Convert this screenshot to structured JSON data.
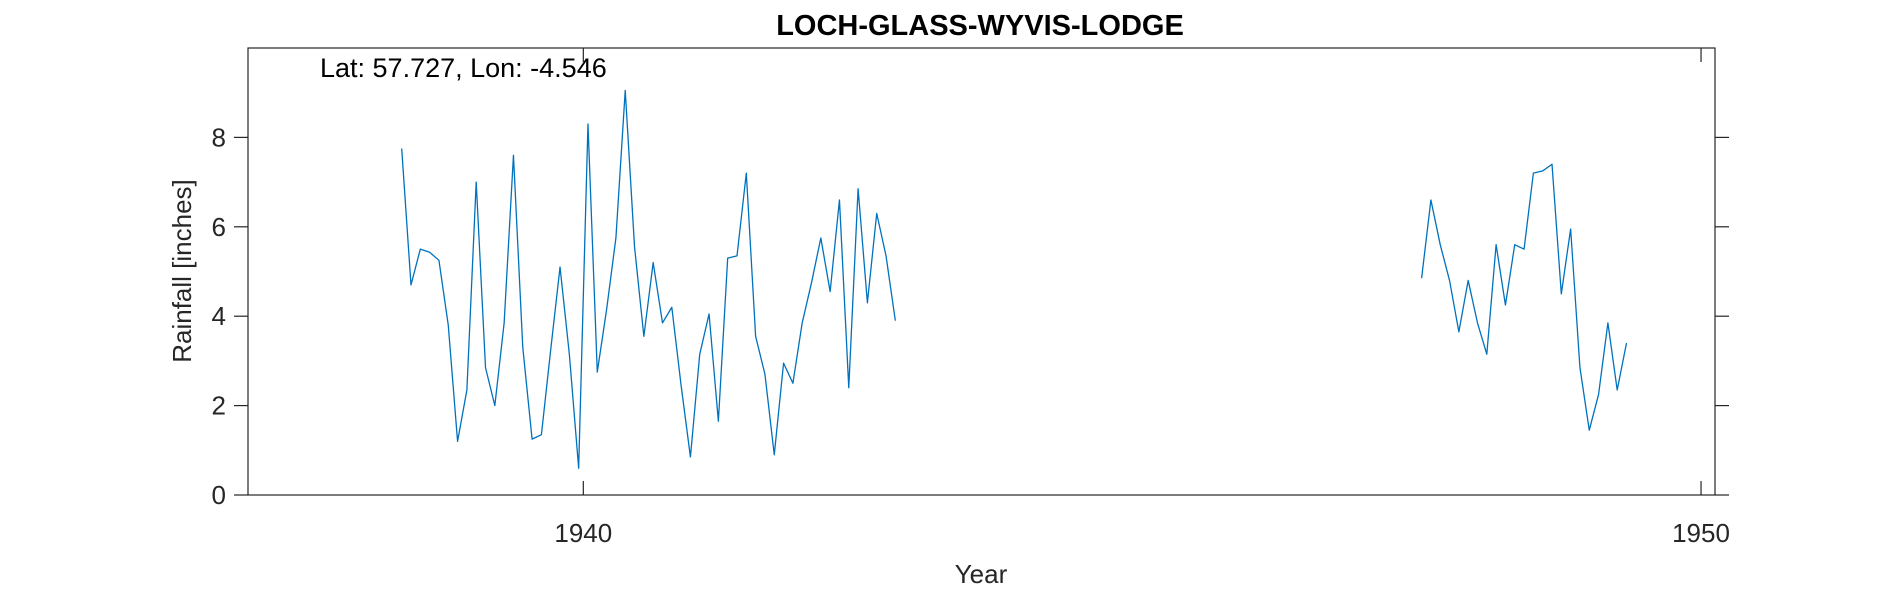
{
  "chart_data": {
    "type": "line",
    "title": "LOCH-GLASS-WYVIS-LODGE",
    "xlabel": "Year",
    "ylabel": "Rainfall [inches]",
    "annotation": "Lat: 57.727, Lon: -4.546",
    "xlim": [
      1937.0,
      1950.125
    ],
    "ylim": [
      0,
      10
    ],
    "xticks": [
      1940,
      1950
    ],
    "yticks": [
      0,
      2,
      4,
      6,
      8
    ],
    "grid": false,
    "series": [
      {
        "color": "#0072BD",
        "segments": [
          {
            "x_start": 1938.375,
            "x_step": 0.08333333,
            "values": [
              7.75,
              4.7,
              5.5,
              5.43,
              5.25,
              3.8,
              1.2,
              2.35,
              7.0,
              2.85,
              2.0,
              3.85,
              7.6,
              3.3,
              1.25,
              1.35,
              3.25,
              5.1,
              3.15,
              0.6,
              8.3,
              2.75,
              4.15,
              5.75,
              9.05,
              5.55,
              3.55,
              5.2,
              3.85,
              4.2,
              2.45,
              0.85,
              3.15,
              4.05,
              1.65,
              5.3,
              5.35,
              7.2,
              3.55,
              2.7,
              0.9,
              2.95,
              2.5,
              3.85,
              4.75,
              5.75,
              4.55,
              6.6,
              2.4,
              6.85,
              4.3,
              6.3,
              5.35,
              3.9
            ]
          },
          {
            "x_start": 1947.5,
            "x_step": 0.08333333,
            "values": [
              4.85,
              6.6,
              5.6,
              4.8,
              3.65,
              4.8,
              3.85,
              3.15,
              5.6,
              4.25,
              5.6,
              5.5,
              7.2,
              7.25,
              7.4,
              4.5,
              5.95,
              2.85,
              1.45,
              2.25,
              3.85,
              2.35,
              3.4
            ]
          }
        ]
      }
    ]
  }
}
